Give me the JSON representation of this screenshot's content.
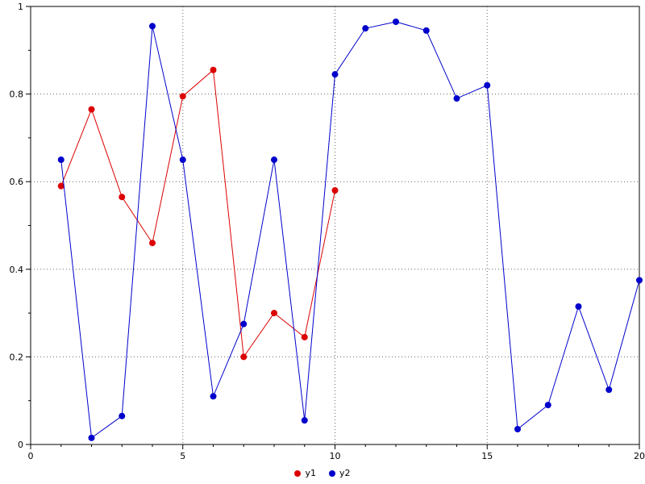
{
  "chart_data": {
    "type": "line",
    "title": "",
    "xlabel": "",
    "ylabel": "",
    "xlim": [
      0,
      20
    ],
    "ylim": [
      0,
      1
    ],
    "xticks": [
      0,
      5,
      10,
      15,
      20
    ],
    "yticks": [
      0,
      0.2,
      0.4,
      0.6,
      0.8,
      1
    ],
    "xtick_labels": [
      "0",
      "5",
      "10",
      "15",
      "20"
    ],
    "ytick_labels": [
      "0",
      "0.2",
      "0.4",
      "0.6",
      "0.8",
      "1"
    ],
    "x_minor_step": 1,
    "y_minor_step": 0.1,
    "grid": true,
    "legend_position": "bottom-center",
    "series": [
      {
        "name": "y1",
        "color": "#dd0000",
        "marker": "circle",
        "x": [
          1,
          2,
          3,
          4,
          5,
          6,
          7,
          8,
          9,
          10
        ],
        "values": [
          0.59,
          0.765,
          0.565,
          0.46,
          0.795,
          0.855,
          0.2,
          0.3,
          0.245,
          0.58
        ]
      },
      {
        "name": "y2",
        "color": "#0000cc",
        "marker": "circle",
        "x": [
          1,
          2,
          3,
          4,
          5,
          6,
          7,
          8,
          9,
          10,
          11,
          12,
          13,
          14,
          15,
          16,
          17,
          18,
          19,
          20
        ],
        "values": [
          0.65,
          0.015,
          0.065,
          0.955,
          0.65,
          0.11,
          0.275,
          0.65,
          0.055,
          0.845,
          0.95,
          0.965,
          0.945,
          0.79,
          0.82,
          0.035,
          0.09,
          0.315,
          0.125,
          0.375
        ]
      }
    ]
  },
  "colors": {
    "axis": "#000000",
    "grid": "#666666",
    "plot_background": "#ffffff",
    "page_background": "#ffffff"
  }
}
